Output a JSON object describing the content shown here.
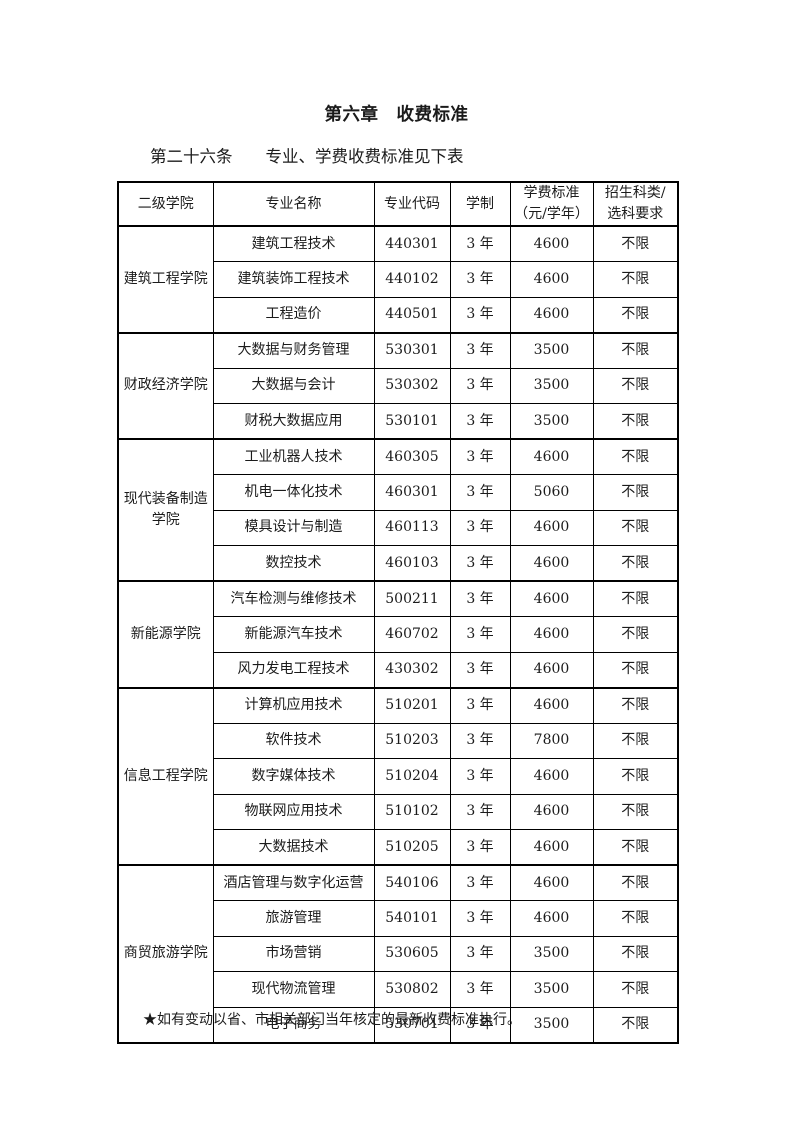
{
  "page": {
    "chapter_title": "第六章　收费标准",
    "article_title": "第二十六条　　专业、学费收费标准见下表",
    "footnote": "★如有变动以省、市相关部门当年核定的最新收费标准执行。"
  },
  "table": {
    "headers": [
      "二级学院",
      "专业名称",
      "专业代码",
      "学制",
      "学费标准\n（元/学年）",
      "招生科类/\n选科要求"
    ],
    "groups": [
      {
        "college": "建筑工程学院",
        "majors": [
          {
            "name": "建筑工程技术",
            "code": "440301",
            "duration": "3 年",
            "fee": "4600",
            "requirement": "不限"
          },
          {
            "name": "建筑装饰工程技术",
            "code": "440102",
            "duration": "3 年",
            "fee": "4600",
            "requirement": "不限"
          },
          {
            "name": "工程造价",
            "code": "440501",
            "duration": "3 年",
            "fee": "4600",
            "requirement": "不限"
          }
        ]
      },
      {
        "college": "财政经济学院",
        "majors": [
          {
            "name": "大数据与财务管理",
            "code": "530301",
            "duration": "3 年",
            "fee": "3500",
            "requirement": "不限"
          },
          {
            "name": "大数据与会计",
            "code": "530302",
            "duration": "3 年",
            "fee": "3500",
            "requirement": "不限"
          },
          {
            "name": "财税大数据应用",
            "code": "530101",
            "duration": "3 年",
            "fee": "3500",
            "requirement": "不限"
          }
        ]
      },
      {
        "college": "现代装备制造\n学院",
        "majors": [
          {
            "name": "工业机器人技术",
            "code": "460305",
            "duration": "3 年",
            "fee": "4600",
            "requirement": "不限"
          },
          {
            "name": "机电一体化技术",
            "code": "460301",
            "duration": "3 年",
            "fee": "5060",
            "requirement": "不限"
          },
          {
            "name": "模具设计与制造",
            "code": "460113",
            "duration": "3 年",
            "fee": "4600",
            "requirement": "不限"
          },
          {
            "name": "数控技术",
            "code": "460103",
            "duration": "3 年",
            "fee": "4600",
            "requirement": "不限"
          }
        ]
      },
      {
        "college": "新能源学院",
        "majors": [
          {
            "name": "汽车检测与维修技术",
            "code": "500211",
            "duration": "3 年",
            "fee": "4600",
            "requirement": "不限"
          },
          {
            "name": "新能源汽车技术",
            "code": "460702",
            "duration": "3 年",
            "fee": "4600",
            "requirement": "不限"
          },
          {
            "name": "风力发电工程技术",
            "code": "430302",
            "duration": "3 年",
            "fee": "4600",
            "requirement": "不限"
          }
        ]
      },
      {
        "college": "信息工程学院",
        "majors": [
          {
            "name": "计算机应用技术",
            "code": "510201",
            "duration": "3 年",
            "fee": "4600",
            "requirement": "不限"
          },
          {
            "name": "软件技术",
            "code": "510203",
            "duration": "3 年",
            "fee": "7800",
            "requirement": "不限"
          },
          {
            "name": "数字媒体技术",
            "code": "510204",
            "duration": "3 年",
            "fee": "4600",
            "requirement": "不限"
          },
          {
            "name": "物联网应用技术",
            "code": "510102",
            "duration": "3 年",
            "fee": "4600",
            "requirement": "不限"
          },
          {
            "name": "大数据技术",
            "code": "510205",
            "duration": "3 年",
            "fee": "4600",
            "requirement": "不限"
          }
        ]
      },
      {
        "college": "商贸旅游学院",
        "majors": [
          {
            "name": "酒店管理与数字化运营",
            "code": "540106",
            "duration": "3 年",
            "fee": "4600",
            "requirement": "不限"
          },
          {
            "name": "旅游管理",
            "code": "540101",
            "duration": "3 年",
            "fee": "4600",
            "requirement": "不限"
          },
          {
            "name": "市场营销",
            "code": "530605",
            "duration": "3 年",
            "fee": "3500",
            "requirement": "不限"
          },
          {
            "name": "现代物流管理",
            "code": "530802",
            "duration": "3 年",
            "fee": "3500",
            "requirement": "不限"
          },
          {
            "name": "电子商务",
            "code": "530701",
            "duration": "3 年",
            "fee": "3500",
            "requirement": "不限"
          }
        ]
      }
    ]
  }
}
